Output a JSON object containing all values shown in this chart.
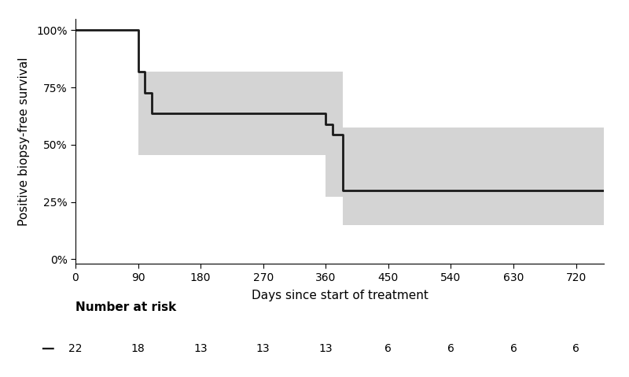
{
  "xlabel": "Days since start of treatment",
  "ylabel": "Positive biopsy-free survival",
  "xlim": [
    0,
    760
  ],
  "ylim": [
    -0.02,
    1.05
  ],
  "xticks": [
    0,
    90,
    180,
    270,
    360,
    450,
    540,
    630,
    720
  ],
  "yticks": [
    0,
    0.25,
    0.5,
    0.75,
    1.0
  ],
  "yticklabels": [
    "0%",
    "25%",
    "50%",
    "75%",
    "100%"
  ],
  "km_x": [
    0,
    90,
    90,
    100,
    100,
    110,
    110,
    360,
    360,
    370,
    370,
    385,
    385,
    760
  ],
  "km_y": [
    1.0,
    1.0,
    0.818,
    0.818,
    0.727,
    0.727,
    0.636,
    0.636,
    0.59,
    0.59,
    0.545,
    0.545,
    0.3,
    0.3
  ],
  "ci_poly_x": [
    90,
    90,
    100,
    100,
    110,
    110,
    360,
    360,
    385,
    385,
    760,
    760,
    385,
    385,
    370,
    370,
    360,
    360,
    110,
    110,
    100,
    100,
    90
  ],
  "ci_poly_y_top": [
    1.0,
    0.818,
    0.818,
    0.818,
    0.818,
    0.818,
    0.818,
    0.818,
    0.818,
    0.574,
    0.574
  ],
  "ci_poly_y_bot": [
    1.0,
    0.454,
    0.454,
    0.454,
    0.454,
    0.272,
    0.272,
    0.148,
    0.148
  ],
  "ci_fill_color": "#d4d4d4",
  "line_color": "#1a1a1a",
  "line_width": 2.0,
  "background_color": "#ffffff",
  "number_at_risk_label": "Number at risk",
  "number_at_risk_x": [
    0,
    90,
    180,
    270,
    360,
    450,
    540,
    630,
    720
  ],
  "number_at_risk_values": [
    22,
    18,
    13,
    13,
    13,
    6,
    6,
    6,
    6
  ],
  "axis_label_fontsize": 11,
  "tick_label_fontsize": 10,
  "risk_label_fontsize": 11,
  "risk_value_fontsize": 10
}
